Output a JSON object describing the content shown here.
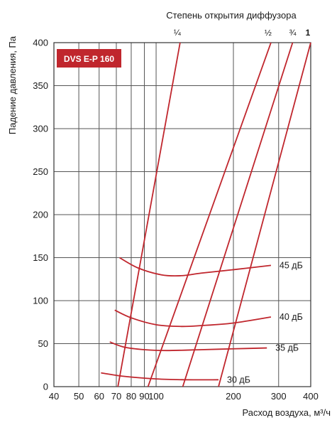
{
  "chart_data": {
    "type": "line",
    "title": "DVS E-P 160",
    "xlabel": "Расход воздуха, м³/ч",
    "ylabel": "Падение давления, Па",
    "top_axis_title": "Степень открытия диффузора",
    "x_scale": "log",
    "xlim": [
      40,
      400
    ],
    "ylim": [
      0,
      400
    ],
    "x_ticks": [
      40,
      50,
      60,
      70,
      80,
      90,
      100,
      200,
      300,
      400
    ],
    "x_tick_labels": [
      "40",
      "50",
      "60",
      "70",
      "80",
      "90",
      "100",
      "200",
      "300",
      "400"
    ],
    "y_ticks": [
      0,
      50,
      100,
      150,
      200,
      250,
      300,
      350,
      400
    ],
    "y_tick_labels": [
      "0",
      "50",
      "100",
      "150",
      "200",
      "250",
      "300",
      "350",
      "400"
    ],
    "grid": true,
    "line_color": "#c0262d",
    "badge_color": "#c0262d",
    "opening_series": [
      {
        "name": "¼",
        "points": [
          [
            71,
            0
          ],
          [
            124,
            400
          ]
        ]
      },
      {
        "name": "½",
        "points": [
          [
            93,
            0
          ],
          [
            280,
            400
          ]
        ]
      },
      {
        "name": "¾",
        "points": [
          [
            127,
            0
          ],
          [
            340,
            400
          ]
        ]
      },
      {
        "name": "1",
        "points": [
          [
            175,
            0
          ],
          [
            400,
            400
          ]
        ]
      }
    ],
    "noise_series": [
      {
        "name": "45 дБ",
        "points": [
          [
            72,
            150
          ],
          [
            85,
            138
          ],
          [
            105,
            130
          ],
          [
            125,
            129
          ],
          [
            150,
            132
          ],
          [
            200,
            136
          ],
          [
            280,
            141
          ]
        ]
      },
      {
        "name": "40 дБ",
        "points": [
          [
            69,
            89
          ],
          [
            80,
            80
          ],
          [
            100,
            72
          ],
          [
            125,
            70
          ],
          [
            150,
            71
          ],
          [
            200,
            74
          ],
          [
            280,
            81
          ]
        ]
      },
      {
        "name": "35 дБ",
        "points": [
          [
            66,
            52
          ],
          [
            75,
            46
          ],
          [
            90,
            43
          ],
          [
            110,
            42
          ],
          [
            150,
            43
          ],
          [
            200,
            44
          ],
          [
            270,
            45
          ]
        ]
      },
      {
        "name": "30 дБ",
        "points": [
          [
            61,
            16
          ],
          [
            75,
            12
          ],
          [
            100,
            9
          ],
          [
            130,
            8
          ],
          [
            175,
            8
          ]
        ]
      }
    ]
  }
}
